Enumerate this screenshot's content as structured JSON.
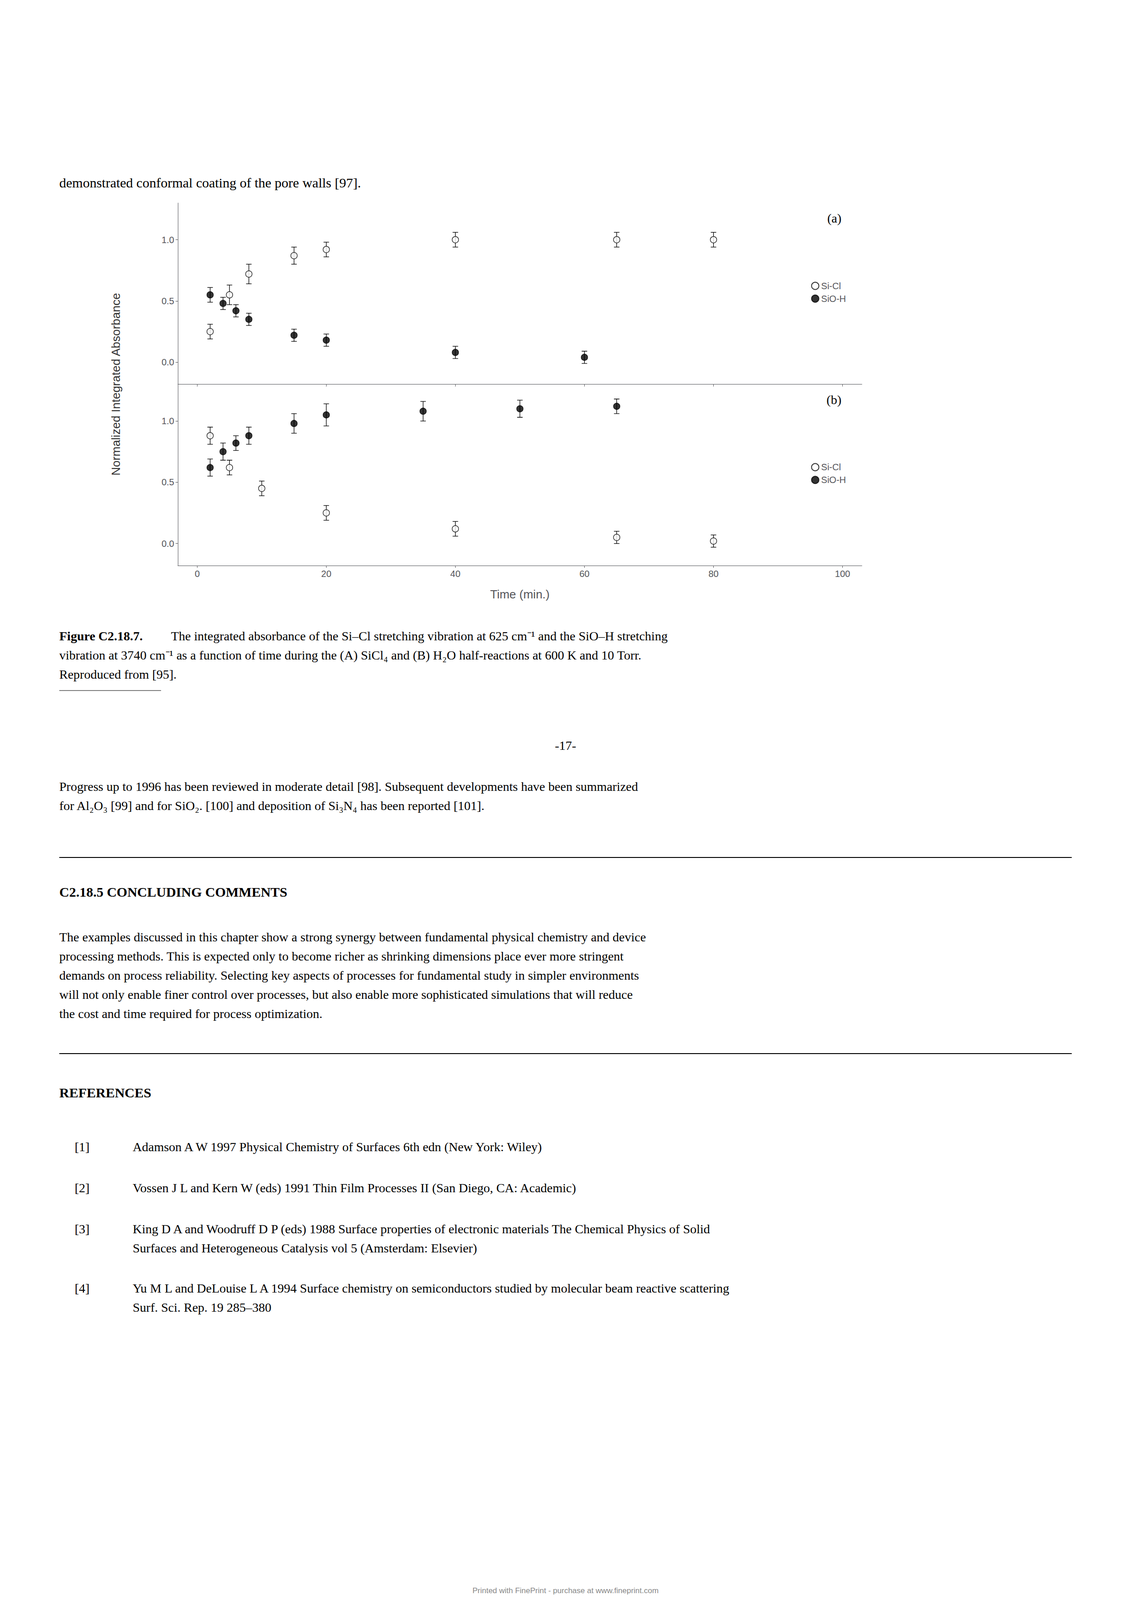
{
  "chart_data": [
    {
      "type": "scatter",
      "annotations": [
        "(a)"
      ],
      "ylabel": "Normalized Integrated Absorbance",
      "series": [
        {
          "name": "Si-Cl",
          "color": "#000000",
          "marker": "circle_open",
          "x": [
            2,
            5,
            8,
            15,
            20,
            40,
            65,
            80
          ],
          "values": [
            0.25,
            0.55,
            0.72,
            0.87,
            0.92,
            1.0,
            1.0,
            1.0
          ],
          "errors": [
            0.06,
            0.08,
            0.08,
            0.07,
            0.06,
            0.06,
            0.06,
            0.06
          ]
        },
        {
          "name": "SiO-H",
          "color": "#000000",
          "marker": "circle",
          "x": [
            2,
            4,
            6,
            8,
            15,
            20,
            40,
            60
          ],
          "values": [
            0.55,
            0.48,
            0.42,
            0.35,
            0.22,
            0.18,
            0.08,
            0.04
          ],
          "errors": [
            0.06,
            0.05,
            0.05,
            0.05,
            0.05,
            0.05,
            0.05,
            0.05
          ]
        }
      ],
      "xlim": [
        -3,
        103
      ],
      "xticks": [
        0,
        20,
        40,
        60,
        80,
        100
      ],
      "ylim": [
        -0.18,
        1.3
      ],
      "yticks": [
        {
          "value": 0.0,
          "label": "0.0"
        },
        {
          "value": 0.5,
          "label": "0.5"
        },
        {
          "value": 1.0,
          "label": "1.0"
        }
      ],
      "grid": false,
      "legend": "right",
      "tick_labels": "y"
    },
    {
      "type": "scatter",
      "annotations": [
        "(b)"
      ],
      "xlabel": "Time (min.)",
      "series": [
        {
          "name": "Si-Cl",
          "color": "#000000",
          "marker": "circle_open",
          "x": [
            2,
            5,
            10,
            20,
            40,
            65,
            80
          ],
          "values": [
            0.88,
            0.62,
            0.45,
            0.25,
            0.12,
            0.05,
            0.02
          ],
          "errors": [
            0.07,
            0.06,
            0.06,
            0.06,
            0.06,
            0.05,
            0.05
          ]
        },
        {
          "name": "SiO-H",
          "color": "#000000",
          "marker": "circle",
          "x": [
            2,
            4,
            6,
            8,
            15,
            20,
            35,
            50,
            65
          ],
          "values": [
            0.62,
            0.75,
            0.82,
            0.88,
            0.98,
            1.05,
            1.08,
            1.1,
            1.12
          ],
          "errors": [
            0.07,
            0.07,
            0.06,
            0.07,
            0.08,
            0.09,
            0.08,
            0.07,
            0.06
          ]
        }
      ],
      "xlim": [
        -3,
        103
      ],
      "xticks": [
        0,
        20,
        40,
        60,
        80,
        100
      ],
      "ylim": [
        -0.18,
        1.3
      ],
      "yticks": [
        {
          "value": 0.0,
          "label": "0.0"
        },
        {
          "value": 0.5,
          "label": "0.5"
        },
        {
          "value": 1.0,
          "label": "1.0"
        }
      ],
      "grid": false,
      "legend": "right"
    }
  ],
  "annotations": [
    "demonstrated conformal coating of the pore walls [97].",
    "Figure C2.18.7.",
    "The integrated absorbance of the Si–Cl stretching vibration at 625 cm⁻¹ and the SiO–H stretching",
    "vibration at 3740 cm⁻¹ as a function of time during the (A) SiCl₄ and (B) H₂O half-reactions at 600 K and 10 Torr.",
    "Reproduced from [95].",
    "-17-",
    "Progress up to 1996 has been reviewed in moderate detail [98]. Subsequent developments have been summarized",
    "for Al₂O₃ [99] and for SiO₂. [100] and deposition of Si₃N₄ has been reported [101].",
    "C2.18.5 CONCLUDING COMMENTS",
    "The examples discussed in this chapter show a strong synergy between fundamental physical chemistry and device",
    "processing methods. This is expected only to become richer as shrinking dimensions place ever more stringent",
    "demands on process reliability. Selecting key aspects of processes for fundamental study in simpler environments",
    "will not only enable finer control over processes, but also enable more sophisticated simulations that will reduce",
    "the cost and time required for process optimization.",
    "REFERENCES",
    "[1]",
    "Adamson A W 1997 Physical Chemistry of Surfaces 6th edn (New York: Wiley)",
    "[2]",
    "Vossen J L and Kern W (eds) 1991 Thin Film Processes II (San Diego, CA: Academic)",
    "[3]",
    "King D A and Woodruff D P (eds) 1988 Surface properties of electronic materials The Chemical Physics of Solid",
    "Surfaces and Heterogeneous Catalysis vol 5 (Amsterdam: Elsevier)",
    "[4]",
    "Yu M L and DeLouise L A 1994 Surface chemistry on semiconductors studied by molecular beam reactive scattering",
    "Surf. Sci. Rep. 19 285–380",
    "Printed with FinePrint - purchase at www.fineprint.com"
  ]
}
